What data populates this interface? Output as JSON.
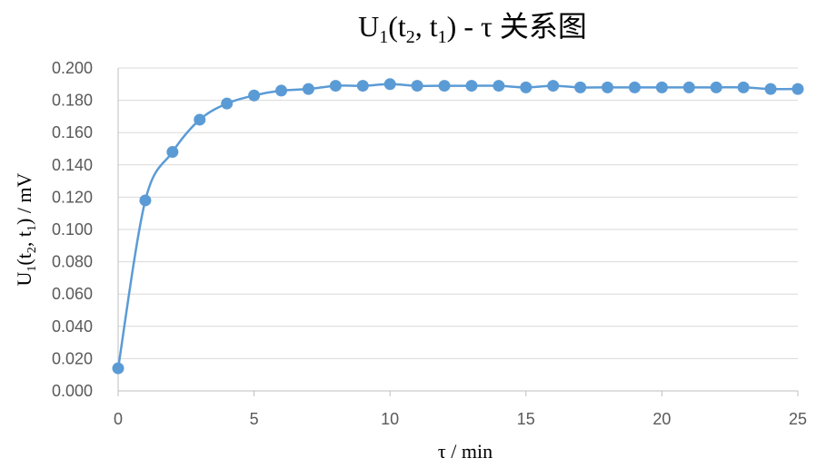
{
  "chart_data": {
    "type": "line",
    "title": {
      "main": "U",
      "sub1": "1",
      "mid1": "(t",
      "sub2": "2",
      "mid2": ", t",
      "sub3": "1",
      "tail": ") - τ 关系图"
    },
    "xlabel": "τ / min",
    "ylabel": {
      "main": "U",
      "sub1": "1",
      "mid1": "(t",
      "sub2": "2",
      "mid2": ", t",
      "sub3": "1",
      "tail": ")  / mV"
    },
    "xlim": [
      0,
      25
    ],
    "ylim": [
      0,
      0.2
    ],
    "x_ticks": [
      "0",
      "5",
      "10",
      "15",
      "20",
      "25"
    ],
    "y_ticks": [
      "0.000",
      "0.020",
      "0.040",
      "0.060",
      "0.080",
      "0.100",
      "0.120",
      "0.140",
      "0.160",
      "0.180",
      "0.200"
    ],
    "grid": true,
    "marker": "circle",
    "line": "smooth",
    "series": [
      {
        "color": "#5b9bd5",
        "x": [
          0,
          1,
          2,
          3,
          4,
          5,
          6,
          7,
          8,
          9,
          10,
          11,
          12,
          13,
          14,
          15,
          16,
          17,
          18,
          19,
          20,
          21,
          22,
          23,
          24,
          25
        ],
        "y": [
          0.014,
          0.118,
          0.148,
          0.168,
          0.178,
          0.183,
          0.186,
          0.187,
          0.189,
          0.189,
          0.19,
          0.189,
          0.189,
          0.189,
          0.189,
          0.188,
          0.189,
          0.188,
          0.188,
          0.188,
          0.188,
          0.188,
          0.188,
          0.188,
          0.187,
          0.187
        ]
      }
    ]
  }
}
